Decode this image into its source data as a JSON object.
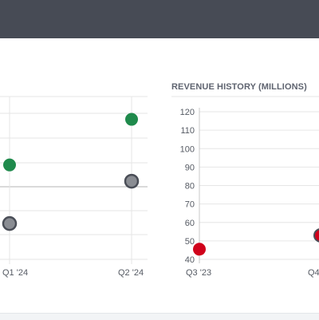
{
  "colors": {
    "header": "#474b55",
    "green": "#1f8a4c",
    "gray": "#8a8d93",
    "gray_stroke": "#4a4e57",
    "red": "#d0021b",
    "grid": "#e6e6e6",
    "axis": "#c8c8c8"
  },
  "chart_data": [
    {
      "type": "scatter",
      "title": "",
      "categories": [
        "Q1 '24",
        "Q2 '24"
      ],
      "tick_labels": [
        "Q1 '24",
        "Q2 '24"
      ],
      "series": [
        {
          "color": "#1f8a4c",
          "values": [
            0.58,
            0.86
          ]
        },
        {
          "color": "#8a8d93",
          "values": [
            0.22,
            0.48
          ]
        }
      ],
      "grid": true
    },
    {
      "type": "scatter",
      "title": "REVENUE HISTORY (MILLIONS)",
      "categories": [
        "Q3 '23",
        "Q4"
      ],
      "tick_labels": [
        "Q3 '23",
        "Q4"
      ],
      "ylim": [
        40,
        120
      ],
      "y_ticks": [
        "40",
        "50",
        "60",
        "70",
        "80",
        "90",
        "100",
        "110",
        "120"
      ],
      "series": [
        {
          "color": "#d0021b",
          "values": [
            45.5,
            53
          ]
        }
      ],
      "grid": true
    }
  ]
}
